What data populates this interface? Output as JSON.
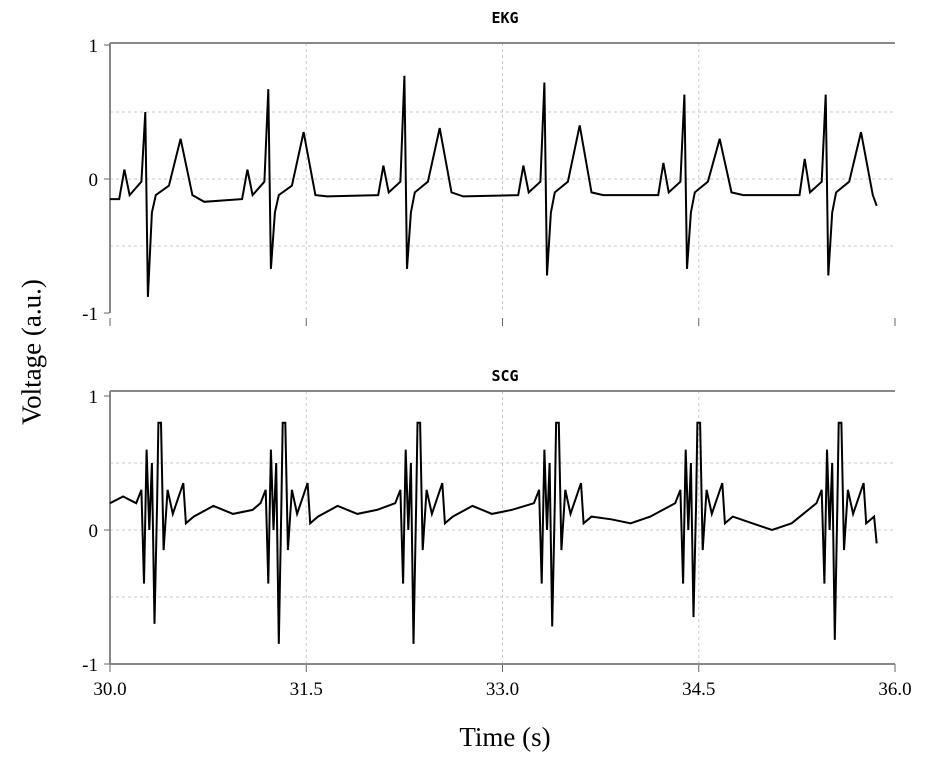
{
  "chart_data": [
    {
      "type": "line",
      "title": "EKG",
      "ylabel": "Voltage (a.u.)",
      "xlim": [
        30.0,
        36.0
      ],
      "ylim": [
        -1,
        1
      ],
      "yticks": [
        "1",
        "0",
        "-1"
      ],
      "grid": true,
      "grid_y": [
        0.5,
        0,
        -0.5
      ],
      "grid_x": [
        31.5,
        33.0,
        34.5
      ],
      "color": "#000000",
      "points": [
        [
          30.0,
          -0.15
        ],
        [
          30.07,
          -0.15
        ],
        [
          30.11,
          0.07
        ],
        [
          30.15,
          -0.12
        ],
        [
          30.24,
          -0.02
        ],
        [
          30.27,
          0.5
        ],
        [
          30.29,
          -0.88
        ],
        [
          30.32,
          -0.25
        ],
        [
          30.35,
          -0.12
        ],
        [
          30.45,
          -0.05
        ],
        [
          30.54,
          0.3
        ],
        [
          30.63,
          -0.12
        ],
        [
          30.72,
          -0.17
        ],
        [
          31.01,
          -0.15
        ],
        [
          31.05,
          0.07
        ],
        [
          31.09,
          -0.12
        ],
        [
          31.18,
          -0.02
        ],
        [
          31.21,
          0.67
        ],
        [
          31.23,
          -0.67
        ],
        [
          31.26,
          -0.25
        ],
        [
          31.29,
          -0.12
        ],
        [
          31.39,
          -0.05
        ],
        [
          31.48,
          0.35
        ],
        [
          31.57,
          -0.12
        ],
        [
          31.66,
          -0.13
        ],
        [
          32.05,
          -0.12
        ],
        [
          32.09,
          0.1
        ],
        [
          32.13,
          -0.1
        ],
        [
          32.22,
          -0.02
        ],
        [
          32.25,
          0.77
        ],
        [
          32.27,
          -0.67
        ],
        [
          32.3,
          -0.25
        ],
        [
          32.33,
          -0.1
        ],
        [
          32.43,
          -0.02
        ],
        [
          32.52,
          0.38
        ],
        [
          32.61,
          -0.1
        ],
        [
          32.7,
          -0.13
        ],
        [
          33.12,
          -0.12
        ],
        [
          33.16,
          0.1
        ],
        [
          33.2,
          -0.1
        ],
        [
          33.29,
          -0.02
        ],
        [
          33.32,
          0.72
        ],
        [
          33.34,
          -0.72
        ],
        [
          33.37,
          -0.25
        ],
        [
          33.4,
          -0.1
        ],
        [
          33.5,
          -0.02
        ],
        [
          33.59,
          0.4
        ],
        [
          33.68,
          -0.1
        ],
        [
          33.77,
          -0.12
        ],
        [
          34.19,
          -0.12
        ],
        [
          34.23,
          0.12
        ],
        [
          34.27,
          -0.1
        ],
        [
          34.36,
          -0.02
        ],
        [
          34.39,
          0.63
        ],
        [
          34.41,
          -0.67
        ],
        [
          34.44,
          -0.25
        ],
        [
          34.47,
          -0.1
        ],
        [
          34.57,
          -0.02
        ],
        [
          34.66,
          0.3
        ],
        [
          34.75,
          -0.1
        ],
        [
          34.84,
          -0.12
        ],
        [
          35.27,
          -0.12
        ],
        [
          35.31,
          0.15
        ],
        [
          35.35,
          -0.1
        ],
        [
          35.44,
          -0.02
        ],
        [
          35.47,
          0.63
        ],
        [
          35.49,
          -0.72
        ],
        [
          35.52,
          -0.25
        ],
        [
          35.55,
          -0.1
        ],
        [
          35.65,
          -0.02
        ],
        [
          35.74,
          0.35
        ],
        [
          35.83,
          -0.12
        ],
        [
          35.86,
          -0.2
        ]
      ]
    },
    {
      "type": "line",
      "title": "SCG",
      "xlabel": "Time (s)",
      "xlim": [
        30.0,
        36.0
      ],
      "ylim": [
        -1,
        1
      ],
      "yticks": [
        "1",
        "0",
        "-1"
      ],
      "xticks": [
        "30.0",
        "31.5",
        "33.0",
        "34.5",
        "36.0"
      ],
      "grid": true,
      "grid_y": [
        0.5,
        0,
        -0.5
      ],
      "grid_x": [
        31.5,
        33.0,
        34.5
      ],
      "color": "#000000",
      "points": [
        [
          30.0,
          0.2
        ],
        [
          30.1,
          0.25
        ],
        [
          30.2,
          0.2
        ],
        [
          30.24,
          0.3
        ],
        [
          30.26,
          -0.4
        ],
        [
          30.28,
          0.6
        ],
        [
          30.3,
          0
        ],
        [
          30.32,
          0.5
        ],
        [
          30.34,
          -0.7
        ],
        [
          30.36,
          0.2
        ],
        [
          30.37,
          0.8
        ],
        [
          30.39,
          0.8
        ],
        [
          30.41,
          -0.15
        ],
        [
          30.44,
          0.3
        ],
        [
          30.48,
          0.12
        ],
        [
          30.56,
          0.35
        ],
        [
          30.58,
          0.05
        ],
        [
          30.64,
          0.1
        ],
        [
          30.79,
          0.18
        ],
        [
          30.94,
          0.12
        ],
        [
          31.09,
          0.15
        ],
        [
          31.15,
          0.2
        ],
        [
          31.19,
          0.3
        ],
        [
          31.21,
          -0.4
        ],
        [
          31.23,
          0.6
        ],
        [
          31.25,
          0
        ],
        [
          31.27,
          0.5
        ],
        [
          31.29,
          -0.85
        ],
        [
          31.31,
          0.2
        ],
        [
          31.32,
          0.8
        ],
        [
          31.34,
          0.8
        ],
        [
          31.36,
          -0.15
        ],
        [
          31.39,
          0.3
        ],
        [
          31.43,
          0.12
        ],
        [
          31.51,
          0.35
        ],
        [
          31.53,
          0.05
        ],
        [
          31.59,
          0.1
        ],
        [
          31.74,
          0.18
        ],
        [
          31.89,
          0.12
        ],
        [
          32.04,
          0.15
        ],
        [
          32.18,
          0.2
        ],
        [
          32.22,
          0.3
        ],
        [
          32.24,
          -0.4
        ],
        [
          32.26,
          0.6
        ],
        [
          32.28,
          0
        ],
        [
          32.3,
          0.5
        ],
        [
          32.32,
          -0.85
        ],
        [
          32.34,
          0.2
        ],
        [
          32.35,
          0.8
        ],
        [
          32.37,
          0.8
        ],
        [
          32.39,
          -0.15
        ],
        [
          32.42,
          0.3
        ],
        [
          32.46,
          0.12
        ],
        [
          32.54,
          0.35
        ],
        [
          32.56,
          0.05
        ],
        [
          32.62,
          0.1
        ],
        [
          32.77,
          0.18
        ],
        [
          32.92,
          0.12
        ],
        [
          33.07,
          0.15
        ],
        [
          33.24,
          0.2
        ],
        [
          33.28,
          0.3
        ],
        [
          33.3,
          -0.4
        ],
        [
          33.32,
          0.6
        ],
        [
          33.34,
          0
        ],
        [
          33.36,
          0.5
        ],
        [
          33.38,
          -0.72
        ],
        [
          33.4,
          0.2
        ],
        [
          33.41,
          0.8
        ],
        [
          33.43,
          0.8
        ],
        [
          33.45,
          -0.15
        ],
        [
          33.48,
          0.3
        ],
        [
          33.52,
          0.12
        ],
        [
          33.6,
          0.35
        ],
        [
          33.62,
          0.05
        ],
        [
          33.68,
          0.1
        ],
        [
          33.83,
          0.08
        ],
        [
          33.98,
          0.05
        ],
        [
          34.13,
          0.1
        ],
        [
          34.32,
          0.2
        ],
        [
          34.36,
          0.3
        ],
        [
          34.38,
          -0.4
        ],
        [
          34.4,
          0.6
        ],
        [
          34.42,
          0
        ],
        [
          34.44,
          0.5
        ],
        [
          34.46,
          -0.65
        ],
        [
          34.48,
          0.2
        ],
        [
          34.49,
          0.8
        ],
        [
          34.51,
          0.8
        ],
        [
          34.53,
          -0.15
        ],
        [
          34.56,
          0.3
        ],
        [
          34.6,
          0.12
        ],
        [
          34.68,
          0.35
        ],
        [
          34.7,
          0.05
        ],
        [
          34.76,
          0.1
        ],
        [
          34.91,
          0.05
        ],
        [
          35.06,
          0.0
        ],
        [
          35.21,
          0.05
        ],
        [
          35.4,
          0.2
        ],
        [
          35.44,
          0.3
        ],
        [
          35.46,
          -0.4
        ],
        [
          35.48,
          0.6
        ],
        [
          35.5,
          0
        ],
        [
          35.52,
          0.5
        ],
        [
          35.54,
          -0.82
        ],
        [
          35.56,
          0.2
        ],
        [
          35.57,
          0.8
        ],
        [
          35.59,
          0.8
        ],
        [
          35.61,
          -0.15
        ],
        [
          35.64,
          0.3
        ],
        [
          35.68,
          0.12
        ],
        [
          35.76,
          0.35
        ],
        [
          35.78,
          0.05
        ],
        [
          35.84,
          0.1
        ],
        [
          35.86,
          -0.1
        ]
      ]
    }
  ]
}
